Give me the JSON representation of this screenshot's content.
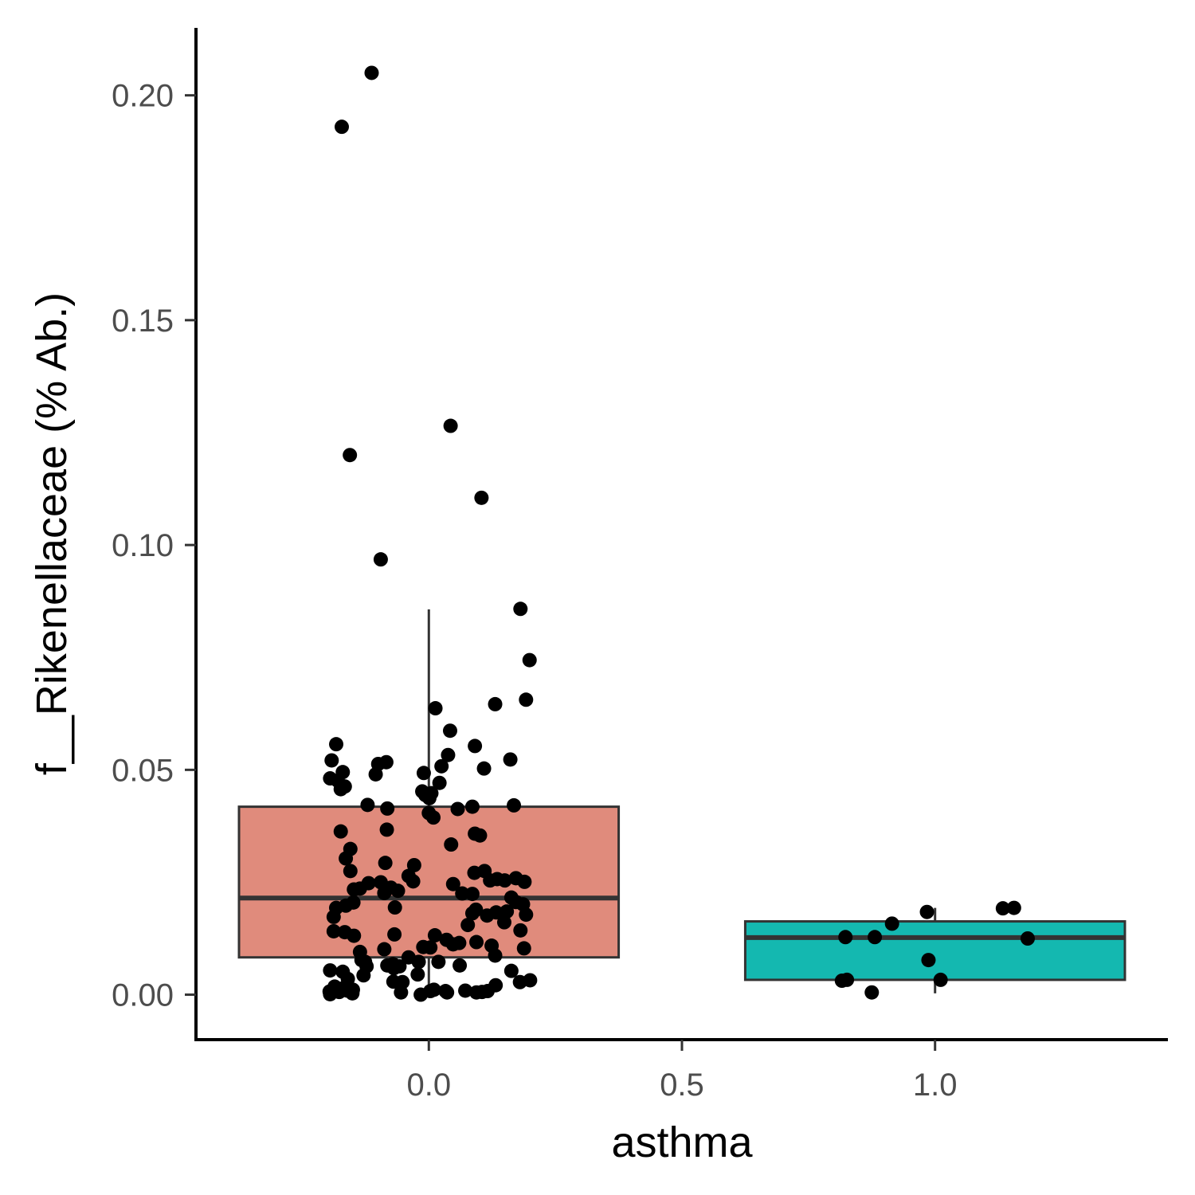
{
  "chart_data": {
    "type": "boxplot",
    "title": "",
    "xlabel": "asthma",
    "ylabel": "f__Rikenellaceae (% Ab.)",
    "xlim": [
      -0.46,
      1.46
    ],
    "ylim": [
      -0.01,
      0.215
    ],
    "x_ticks": [
      {
        "value": 0.0,
        "label": "0.0"
      },
      {
        "value": 0.5,
        "label": "0.5"
      },
      {
        "value": 1.0,
        "label": "1.0"
      }
    ],
    "y_ticks": [
      {
        "value": 0.0,
        "label": "0.00"
      },
      {
        "value": 0.05,
        "label": "0.05"
      },
      {
        "value": 0.1,
        "label": "0.10"
      },
      {
        "value": 0.15,
        "label": "0.15"
      },
      {
        "value": 0.2,
        "label": "0.20"
      }
    ],
    "grid": false,
    "legend": "none",
    "boxes": [
      {
        "x": 0.0,
        "width": 0.75,
        "fill": "#e08b7c",
        "q1": 0.0083,
        "median": 0.0215,
        "q3": 0.0418,
        "whisker_low": 0.0,
        "whisker_high": 0.0857
      },
      {
        "x": 1.0,
        "width": 0.75,
        "fill": "#14b8b0",
        "q1": 0.0033,
        "median": 0.0127,
        "q3": 0.0163,
        "whisker_low": 0.0003,
        "whisker_high": 0.0193
      }
    ],
    "points": [
      [
        -0.113,
        0.205
      ],
      [
        -0.172,
        0.193
      ],
      [
        0.043,
        0.1265
      ],
      [
        -0.156,
        0.12
      ],
      [
        0.104,
        0.1105
      ],
      [
        -0.095,
        0.0968
      ],
      [
        0.181,
        0.0858
      ],
      [
        0.199,
        0.0744
      ],
      [
        0.192,
        0.0656
      ],
      [
        0.131,
        0.0646
      ],
      [
        0.013,
        0.0637
      ],
      [
        0.042,
        0.0587
      ],
      [
        -0.183,
        0.0557
      ],
      [
        0.091,
        0.0553
      ],
      [
        0.038,
        0.0533
      ],
      [
        0.161,
        0.0523
      ],
      [
        -0.192,
        0.0521
      ],
      [
        -0.084,
        0.0517
      ],
      [
        -0.1,
        0.0513
      ],
      [
        0.025,
        0.0508
      ],
      [
        0.109,
        0.0503
      ],
      [
        -0.17,
        0.0495
      ],
      [
        -0.01,
        0.0493
      ],
      [
        -0.105,
        0.049
      ],
      [
        -0.195,
        0.0481
      ],
      [
        -0.18,
        0.0476
      ],
      [
        0.021,
        0.0471
      ],
      [
        -0.166,
        0.0463
      ],
      [
        -0.174,
        0.0457
      ],
      [
        -0.013,
        0.0452
      ],
      [
        0.005,
        0.0448
      ],
      [
        -0.007,
        0.0444
      ],
      [
        0.001,
        0.0437
      ],
      [
        -0.121,
        0.0422
      ],
      [
        0.168,
        0.0421
      ],
      [
        0.086,
        0.0418
      ],
      [
        -0.082,
        0.0414
      ],
      [
        0.057,
        0.0413
      ],
      [
        0.0,
        0.0404
      ],
      [
        0.009,
        0.0394
      ],
      [
        -0.083,
        0.0367
      ],
      [
        -0.174,
        0.0363
      ],
      [
        0.091,
        0.0358
      ],
      [
        0.101,
        0.0354
      ],
      [
        0.044,
        0.0334
      ],
      [
        -0.155,
        0.0324
      ],
      [
        -0.164,
        0.0303
      ],
      [
        -0.086,
        0.0293
      ],
      [
        -0.029,
        0.0288
      ],
      [
        -0.155,
        0.0275
      ],
      [
        0.11,
        0.0275
      ],
      [
        0.09,
        0.0271
      ],
      [
        -0.04,
        0.0264
      ],
      [
        0.172,
        0.0259
      ],
      [
        0.135,
        0.0257
      ],
      [
        0.121,
        0.0254
      ],
      [
        0.15,
        0.0254
      ],
      [
        -0.031,
        0.0252
      ],
      [
        0.189,
        0.0251
      ],
      [
        -0.095,
        0.025
      ],
      [
        -0.119,
        0.0248
      ],
      [
        0.048,
        0.0246
      ],
      [
        -0.075,
        0.0238
      ],
      [
        -0.136,
        0.0236
      ],
      [
        -0.148,
        0.0234
      ],
      [
        -0.061,
        0.0231
      ],
      [
        -0.088,
        0.0226
      ],
      [
        0.066,
        0.0225
      ],
      [
        0.086,
        0.0224
      ],
      [
        0.163,
        0.0216
      ],
      [
        0.172,
        0.0206
      ],
      [
        -0.149,
        0.0205
      ],
      [
        0.186,
        0.0201
      ],
      [
        -0.164,
        0.0198
      ],
      [
        -0.067,
        0.0194
      ],
      [
        -0.183,
        0.0193
      ],
      [
        0.093,
        0.0189
      ],
      [
        0.154,
        0.0185
      ],
      [
        0.133,
        0.0183
      ],
      [
        0.086,
        0.0181
      ],
      [
        0.192,
        0.0178
      ],
      [
        0.115,
        0.0176
      ],
      [
        -0.188,
        0.0173
      ],
      [
        0.149,
        0.0161
      ],
      [
        0.077,
        0.0155
      ],
      [
        -0.188,
        0.0141
      ],
      [
        0.181,
        0.0143
      ],
      [
        -0.166,
        0.0139
      ],
      [
        -0.068,
        0.0134
      ],
      [
        0.012,
        0.0132
      ],
      [
        -0.148,
        0.0131
      ],
      [
        0.035,
        0.0122
      ],
      [
        0.094,
        0.0117
      ],
      [
        0.06,
        0.0115
      ],
      [
        0.048,
        0.0112
      ],
      [
        0.124,
        0.0109
      ],
      [
        -0.011,
        0.0106
      ],
      [
        0.003,
        0.0105
      ],
      [
        0.188,
        0.0103
      ],
      [
        -0.088,
        0.0101
      ],
      [
        -0.136,
        0.0095
      ],
      [
        0.131,
        0.0087
      ],
      [
        -0.126,
        0.0073
      ],
      [
        -0.02,
        0.0073
      ],
      [
        -0.04,
        0.0083
      ],
      [
        -0.133,
        0.0077
      ],
      [
        0.019,
        0.0073
      ],
      [
        -0.071,
        0.0068
      ],
      [
        -0.082,
        0.0065
      ],
      [
        0.061,
        0.0065
      ],
      [
        -0.058,
        0.0063
      ],
      [
        -0.123,
        0.0063
      ],
      [
        -0.069,
        0.0059
      ],
      [
        -0.022,
        0.0045
      ],
      [
        -0.195,
        0.0054
      ],
      [
        -0.17,
        0.0051
      ],
      [
        -0.129,
        0.0043
      ],
      [
        0.163,
        0.0053
      ],
      [
        -0.16,
        0.0035
      ],
      [
        0.2,
        0.0032
      ],
      [
        -0.07,
        0.0029
      ],
      [
        0.18,
        0.0028
      ],
      [
        -0.052,
        0.0028
      ],
      [
        0.132,
        0.0021
      ],
      [
        -0.186,
        0.0018
      ],
      [
        -0.17,
        0.0014
      ],
      [
        -0.15,
        0.0011
      ],
      [
        0.01,
        0.0011
      ],
      [
        -0.161,
        0.0009
      ],
      [
        0.033,
        0.0008
      ],
      [
        0.072,
        0.0009
      ],
      [
        0.003,
        0.0008
      ],
      [
        0.116,
        0.0008
      ],
      [
        0.094,
        0.0005
      ],
      [
        -0.196,
        0.0007
      ],
      [
        -0.177,
        0.0006
      ],
      [
        -0.055,
        0.0005
      ],
      [
        0.105,
        0.0006
      ],
      [
        -0.151,
        0.0003
      ],
      [
        0.036,
        0.0005
      ],
      [
        -0.195,
        0.0001
      ],
      [
        -0.016,
        0.0
      ],
      [
        0.984,
        0.0184
      ],
      [
        1.134,
        0.0192
      ],
      [
        1.156,
        0.0193
      ],
      [
        0.915,
        0.0158
      ],
      [
        1.183,
        0.0125
      ],
      [
        0.823,
        0.0128
      ],
      [
        0.881,
        0.0128
      ],
      [
        0.987,
        0.0077
      ],
      [
        0.826,
        0.0033
      ],
      [
        0.816,
        0.0031
      ],
      [
        1.011,
        0.0033
      ],
      [
        0.875,
        0.0005
      ]
    ]
  }
}
